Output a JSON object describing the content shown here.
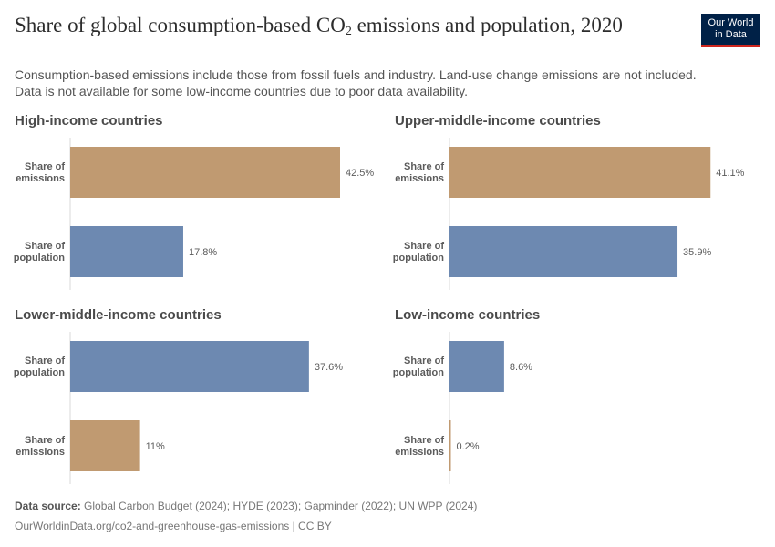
{
  "header": {
    "title_main": "Share of global consumption-based CO",
    "title_sub": "2",
    "title_rest": " emissions and population, 2020",
    "subtitle_line1": "Consumption-based emissions include those from fossil fuels and industry. Land-use change emissions are not included.",
    "subtitle_line2": "Data is not available for some low-income countries due to poor data availability."
  },
  "logo": {
    "line1": "Our World",
    "line2": "in Data"
  },
  "colors": {
    "emissions": "#c09a71",
    "population": "#6d89b1"
  },
  "chart_data": [
    {
      "type": "bar",
      "title": "High-income countries",
      "categories": [
        "Share of emissions",
        "Share of population"
      ],
      "values": [
        42.5,
        17.8
      ],
      "labels": [
        "42.5%",
        "17.8%"
      ],
      "series_keys": [
        "emissions",
        "population"
      ]
    },
    {
      "type": "bar",
      "title": "Upper-middle-income countries",
      "categories": [
        "Share of emissions",
        "Share of population"
      ],
      "values": [
        41.1,
        35.9
      ],
      "labels": [
        "41.1%",
        "35.9%"
      ],
      "series_keys": [
        "emissions",
        "population"
      ]
    },
    {
      "type": "bar",
      "title": "Lower-middle-income countries",
      "categories": [
        "Share of population",
        "Share of emissions"
      ],
      "values": [
        37.6,
        11
      ],
      "labels": [
        "37.6%",
        "11%"
      ],
      "series_keys": [
        "population",
        "emissions"
      ]
    },
    {
      "type": "bar",
      "title": "Low-income countries",
      "categories": [
        "Share of population",
        "Share of emissions"
      ],
      "values": [
        8.6,
        0.2
      ],
      "labels": [
        "8.6%",
        "0.2%"
      ],
      "series_keys": [
        "population",
        "emissions"
      ]
    }
  ],
  "footer": {
    "source_label": "Data source:",
    "source_text": " Global Carbon Budget (2024); HYDE (2023); Gapminder (2022); UN WPP (2024)",
    "url_text": "OurWorldinData.org/co2-and-greenhouse-gas-emissions | CC BY"
  }
}
